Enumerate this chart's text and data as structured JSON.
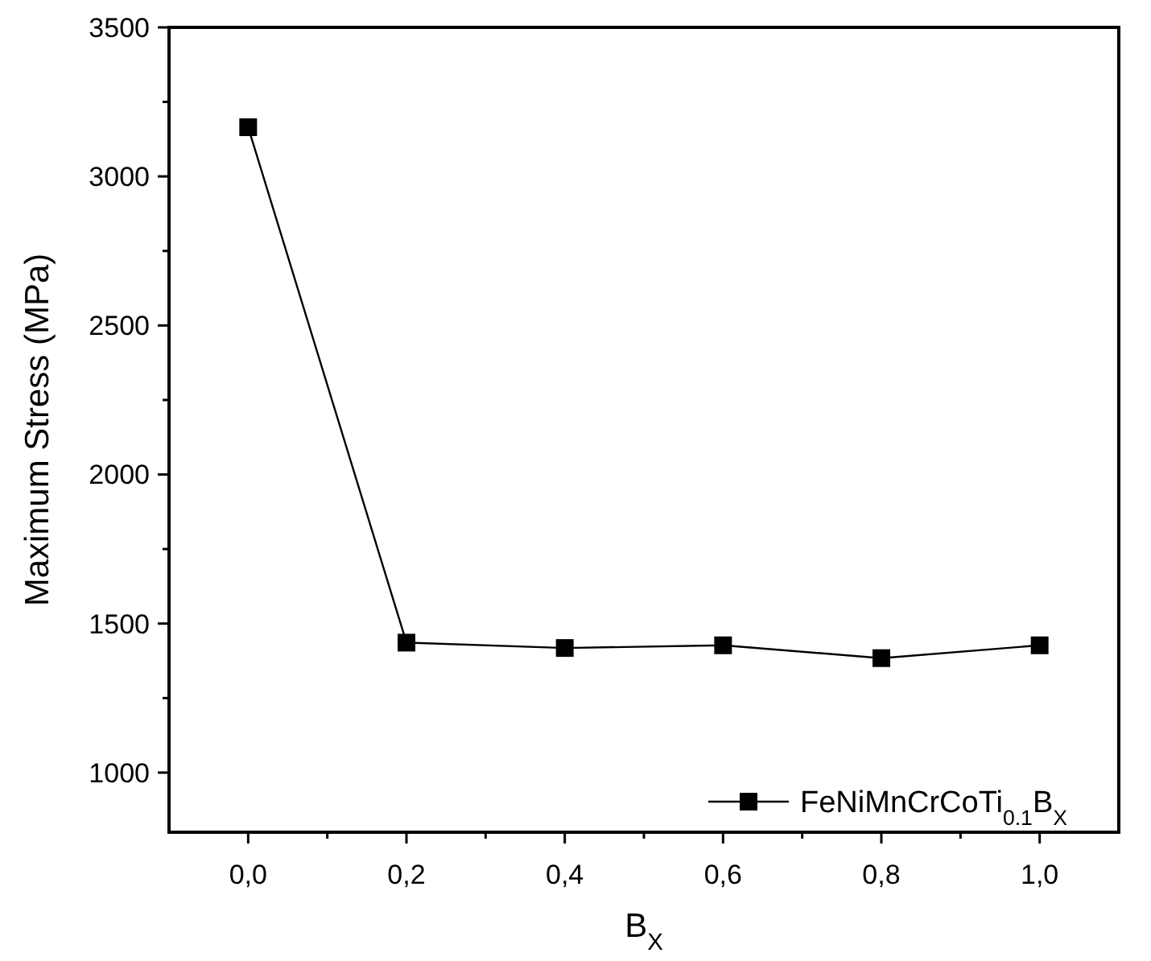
{
  "chart_data": {
    "type": "line",
    "xlabel": "B$_{X}$",
    "ylabel": "Maximum Stress (MPa)",
    "x": [
      0,
      0.2,
      0.4,
      0.6,
      0.8,
      1.0
    ],
    "series": [
      {
        "name": "FeNiMnCrCoTi$_{0.1}$B$_{X}$",
        "color": "#000000",
        "values": [
          3165,
          1436,
          1418,
          1427,
          1384,
          1427
        ]
      }
    ],
    "xlim": [
      -0.1,
      1.1
    ],
    "xticks": [
      {
        "value": 0,
        "label": "0,0"
      },
      {
        "value": 0.1,
        "label": null
      },
      {
        "value": 0.2,
        "label": "0,2"
      },
      {
        "value": 0.3,
        "label": null
      },
      {
        "value": 0.4,
        "label": "0,4"
      },
      {
        "value": 0.5,
        "label": null
      },
      {
        "value": 0.6,
        "label": "0,6"
      },
      {
        "value": 0.7,
        "label": null
      },
      {
        "value": 0.8,
        "label": "0,8"
      },
      {
        "value": 0.9,
        "label": null
      },
      {
        "value": 1.0,
        "label": "1,0"
      }
    ],
    "ylim": [
      800,
      3500
    ],
    "yticks": [
      1000,
      {
        "value": 1250,
        "label": null
      },
      1500,
      {
        "value": 1750,
        "label": null
      },
      2000,
      {
        "value": 2250,
        "label": null
      },
      2500,
      {
        "value": 2750,
        "label": null
      },
      3000,
      {
        "value": 3250,
        "label": null
      },
      3500
    ],
    "marker": "square",
    "line_style": "solid",
    "legend": "bottom right",
    "grid": false
  }
}
